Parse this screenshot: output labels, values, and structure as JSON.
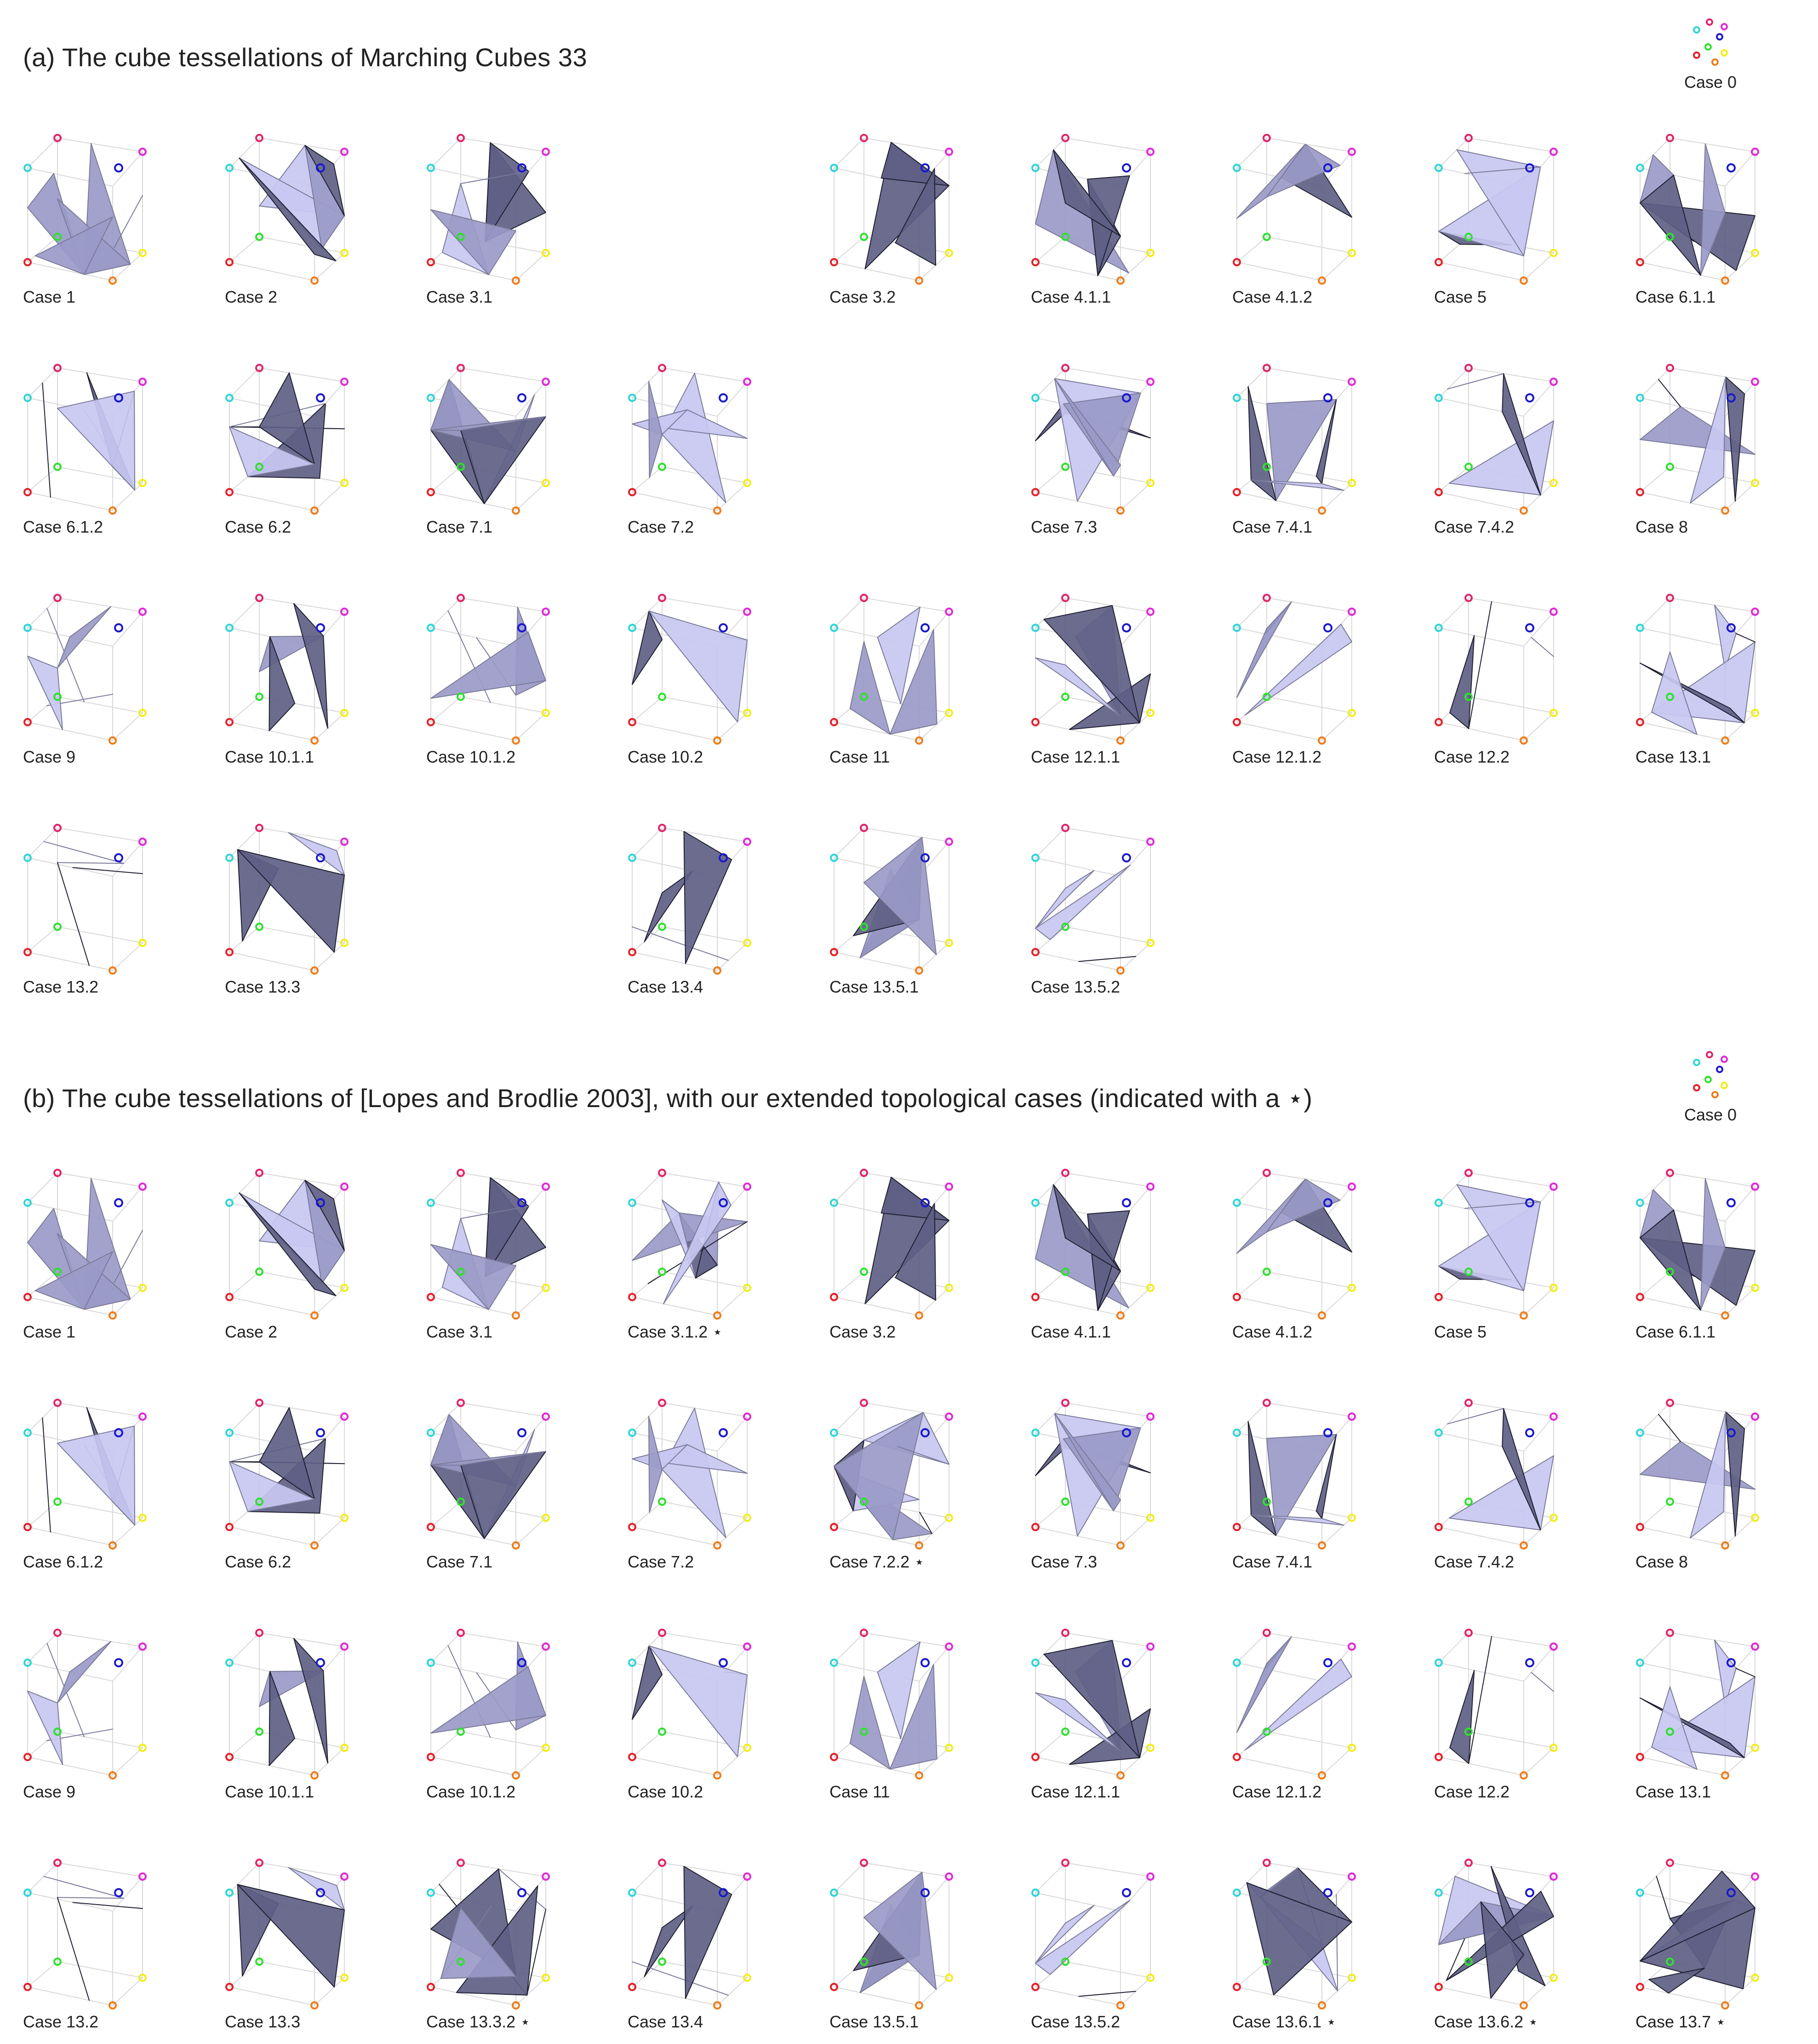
{
  "sections": [
    {
      "title": "(a) The cube tessellations of Marching Cubes 33",
      "case0_label": "Case 0",
      "rows": [
        [
          "Case 1",
          "Case 2",
          "Case 3.1",
          "",
          "Case 3.2",
          "Case 4.1.1",
          "Case 4.1.2",
          "Case 5",
          "Case 6.1.1"
        ],
        [
          "Case 6.1.2",
          "Case 6.2",
          "Case 7.1",
          "Case 7.2",
          "",
          "Case 7.3",
          "Case 7.4.1",
          "Case 7.4.2",
          "Case 8"
        ],
        [
          "Case 9",
          "Case 10.1.1",
          "Case 10.1.2",
          "Case 10.2",
          "Case 11",
          "Case 12.1.1",
          "Case 12.1.2",
          "Case 12.2",
          "Case 13.1"
        ],
        [
          "Case 13.2",
          "Case 13.3",
          "",
          "Case 13.4",
          "Case 13.5.1",
          "Case 13.5.2",
          "",
          "",
          ""
        ]
      ]
    },
    {
      "title": "(b) The cube tessellations of [Lopes and Brodlie 2003], with our extended topological cases (indicated with a ⋆)",
      "case0_label": "Case 0",
      "rows": [
        [
          "Case 1",
          "Case 2",
          "Case 3.1",
          "Case 3.1.2 ⋆",
          "Case 3.2",
          "Case 4.1.1",
          "Case 4.1.2",
          "Case 5",
          "Case 6.1.1"
        ],
        [
          "Case 6.1.2",
          "Case 6.2",
          "Case 7.1",
          "Case 7.2",
          "Case 7.2.2 ⋆",
          "Case 7.3",
          "Case 7.4.1",
          "Case 7.4.2",
          "Case 8"
        ],
        [
          "Case 9",
          "Case 10.1.1",
          "Case 10.1.2",
          "Case 10.2",
          "Case 11",
          "Case 12.1.1",
          "Case 12.1.2",
          "Case 12.2",
          "Case 13.1"
        ],
        [
          "Case 13.2",
          "Case 13.3",
          "Case 13.3.2 ⋆",
          "Case 13.4",
          "Case 13.5.1",
          "Case 13.5.2",
          "Case 13.6.1 ⋆",
          "Case 13.6.2 ⋆",
          "Case 13.7 ⋆"
        ]
      ]
    }
  ],
  "colors": {
    "light_face": "#c8c8f2",
    "dark_face": "#5f5f86",
    "mid_face": "#9a9ac8",
    "cube_edge": "#d9d9d9",
    "vertex_colors": [
      "#e4212b",
      "#f07d1a",
      "#f2ee1a",
      "#2fe02f",
      "#2fd6d6",
      "#1a1acc",
      "#e02ad6",
      "#e0246a"
    ]
  }
}
